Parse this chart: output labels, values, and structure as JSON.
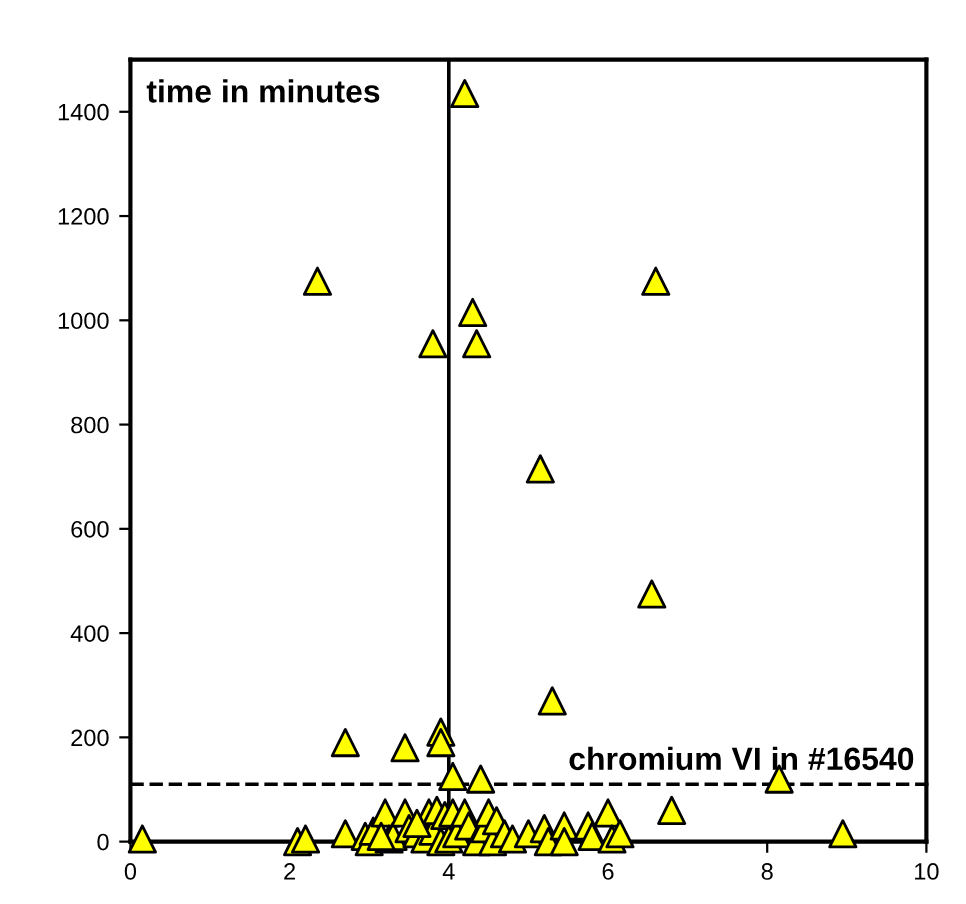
{
  "chart_data": {
    "type": "scatter",
    "marker": "triangle",
    "grid": false,
    "series": [
      {
        "color": "#ffff00",
        "x": [
          4.2,
          2.35,
          6.6,
          4.3,
          4.35,
          3.8,
          5.15,
          6.55,
          5.3,
          2.7,
          3.45,
          3.9,
          3.9,
          4.05,
          4.4,
          8.15,
          6.8,
          8.95,
          0.15,
          2.1,
          2.2,
          2.7,
          2.95,
          3.0,
          3.05,
          3.2,
          3.25,
          3.3,
          3.45,
          3.5,
          3.6,
          3.7,
          3.75,
          3.8,
          3.85,
          3.9,
          3.95,
          4.0,
          4.05,
          4.1,
          4.2,
          4.25,
          4.35,
          4.45,
          4.5,
          4.55,
          4.6,
          4.7,
          4.8,
          5.0,
          5.2,
          5.25,
          5.45,
          5.45,
          5.75,
          5.8,
          6.0,
          6.05,
          6.15,
          3.15,
          3.6
        ],
        "values": [
          1435,
          1075,
          1075,
          1015,
          955,
          955,
          715,
          475,
          270,
          190,
          180,
          210,
          190,
          125,
          120,
          120,
          60,
          15,
          5,
          0,
          5,
          15,
          10,
          0,
          20,
          55,
          5,
          10,
          55,
          25,
          15,
          5,
          55,
          20,
          60,
          0,
          50,
          5,
          55,
          15,
          55,
          30,
          0,
          25,
          55,
          0,
          40,
          15,
          5,
          15,
          25,
          0,
          30,
          0,
          30,
          10,
          55,
          5,
          15,
          10,
          35
        ]
      }
    ],
    "xlim": [
      0,
      10
    ],
    "xticks": [
      0,
      2,
      4,
      6,
      8,
      10
    ],
    "ylim": [
      0,
      1500
    ],
    "yticks": [
      0,
      200,
      400,
      600,
      800,
      1000,
      1200,
      1400
    ],
    "ref_lines": [
      {
        "axis": "x",
        "value": 4,
        "color": "#000000",
        "line_style": "solid"
      },
      {
        "axis": "y",
        "value": 110,
        "label": "chromium VI in #16540",
        "color": "#000000",
        "line_style": "dashed"
      }
    ],
    "annotations": [
      "time in minutes"
    ]
  }
}
